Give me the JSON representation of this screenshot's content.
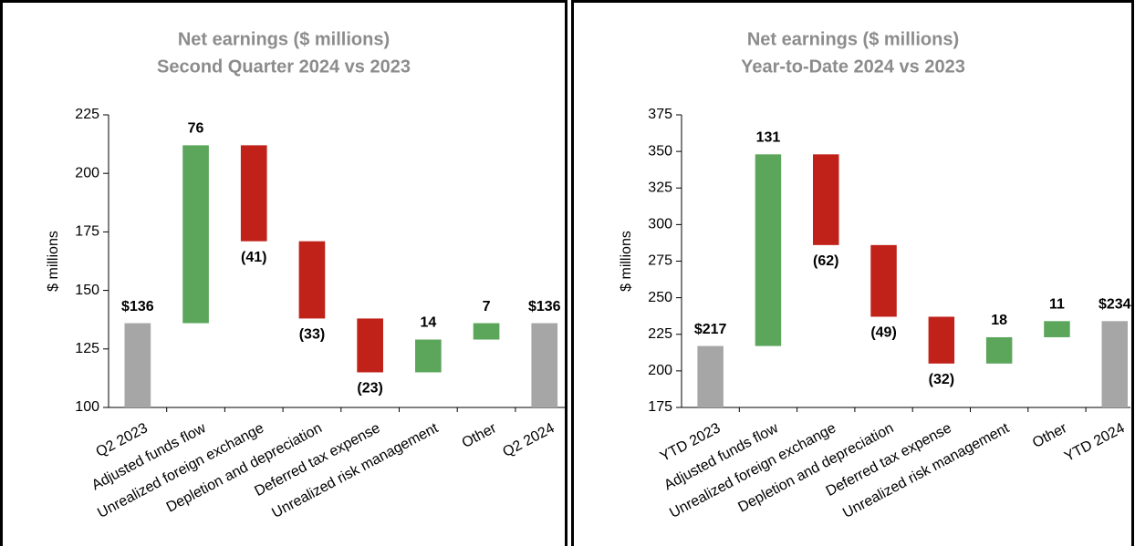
{
  "chart_data": [
    {
      "type": "waterfall",
      "title": "Net earnings ($ millions)",
      "subtitle": "Second Quarter 2024 vs 2023",
      "y_label": "$ millions",
      "categories": [
        "Q2 2023",
        "Adjusted funds flow",
        "Unrealized foreign exchange",
        "Depletion and depreciation",
        "Deferred tax expense",
        "Unrealized risk management",
        "Other",
        "Q2 2024"
      ],
      "values": [
        136,
        76,
        -41,
        -33,
        -23,
        14,
        7,
        136
      ],
      "value_labels": [
        "$136",
        "76",
        "(41)",
        "(33)",
        "(23)",
        "14",
        "7",
        "$136"
      ],
      "ylim": [
        100,
        225
      ],
      "yticks": [
        100,
        125,
        150,
        175,
        200,
        225
      ],
      "colors": {
        "total": "#a6a6a6",
        "increase": "#5ba65b",
        "decrease": "#c0221a"
      }
    },
    {
      "type": "waterfall",
      "title": "Net earnings ($ millions)",
      "subtitle": "Year-to-Date 2024 vs 2023",
      "y_label": "$ millions",
      "categories": [
        "YTD 2023",
        "Adjusted funds flow",
        "Unrealized foreign exchange",
        "Depletion and depreciation",
        "Deferred tax expense",
        "Unrealized risk management",
        "Other",
        "YTD 2024"
      ],
      "values": [
        217,
        131,
        -62,
        -49,
        -32,
        18,
        11,
        234
      ],
      "value_labels": [
        "$217",
        "131",
        "(62)",
        "(49)",
        "(32)",
        "18",
        "11",
        "$234"
      ],
      "ylim": [
        175,
        375
      ],
      "yticks": [
        175,
        200,
        225,
        250,
        275,
        300,
        325,
        350,
        375
      ],
      "colors": {
        "total": "#a6a6a6",
        "increase": "#5ba65b",
        "decrease": "#c0221a"
      }
    }
  ]
}
